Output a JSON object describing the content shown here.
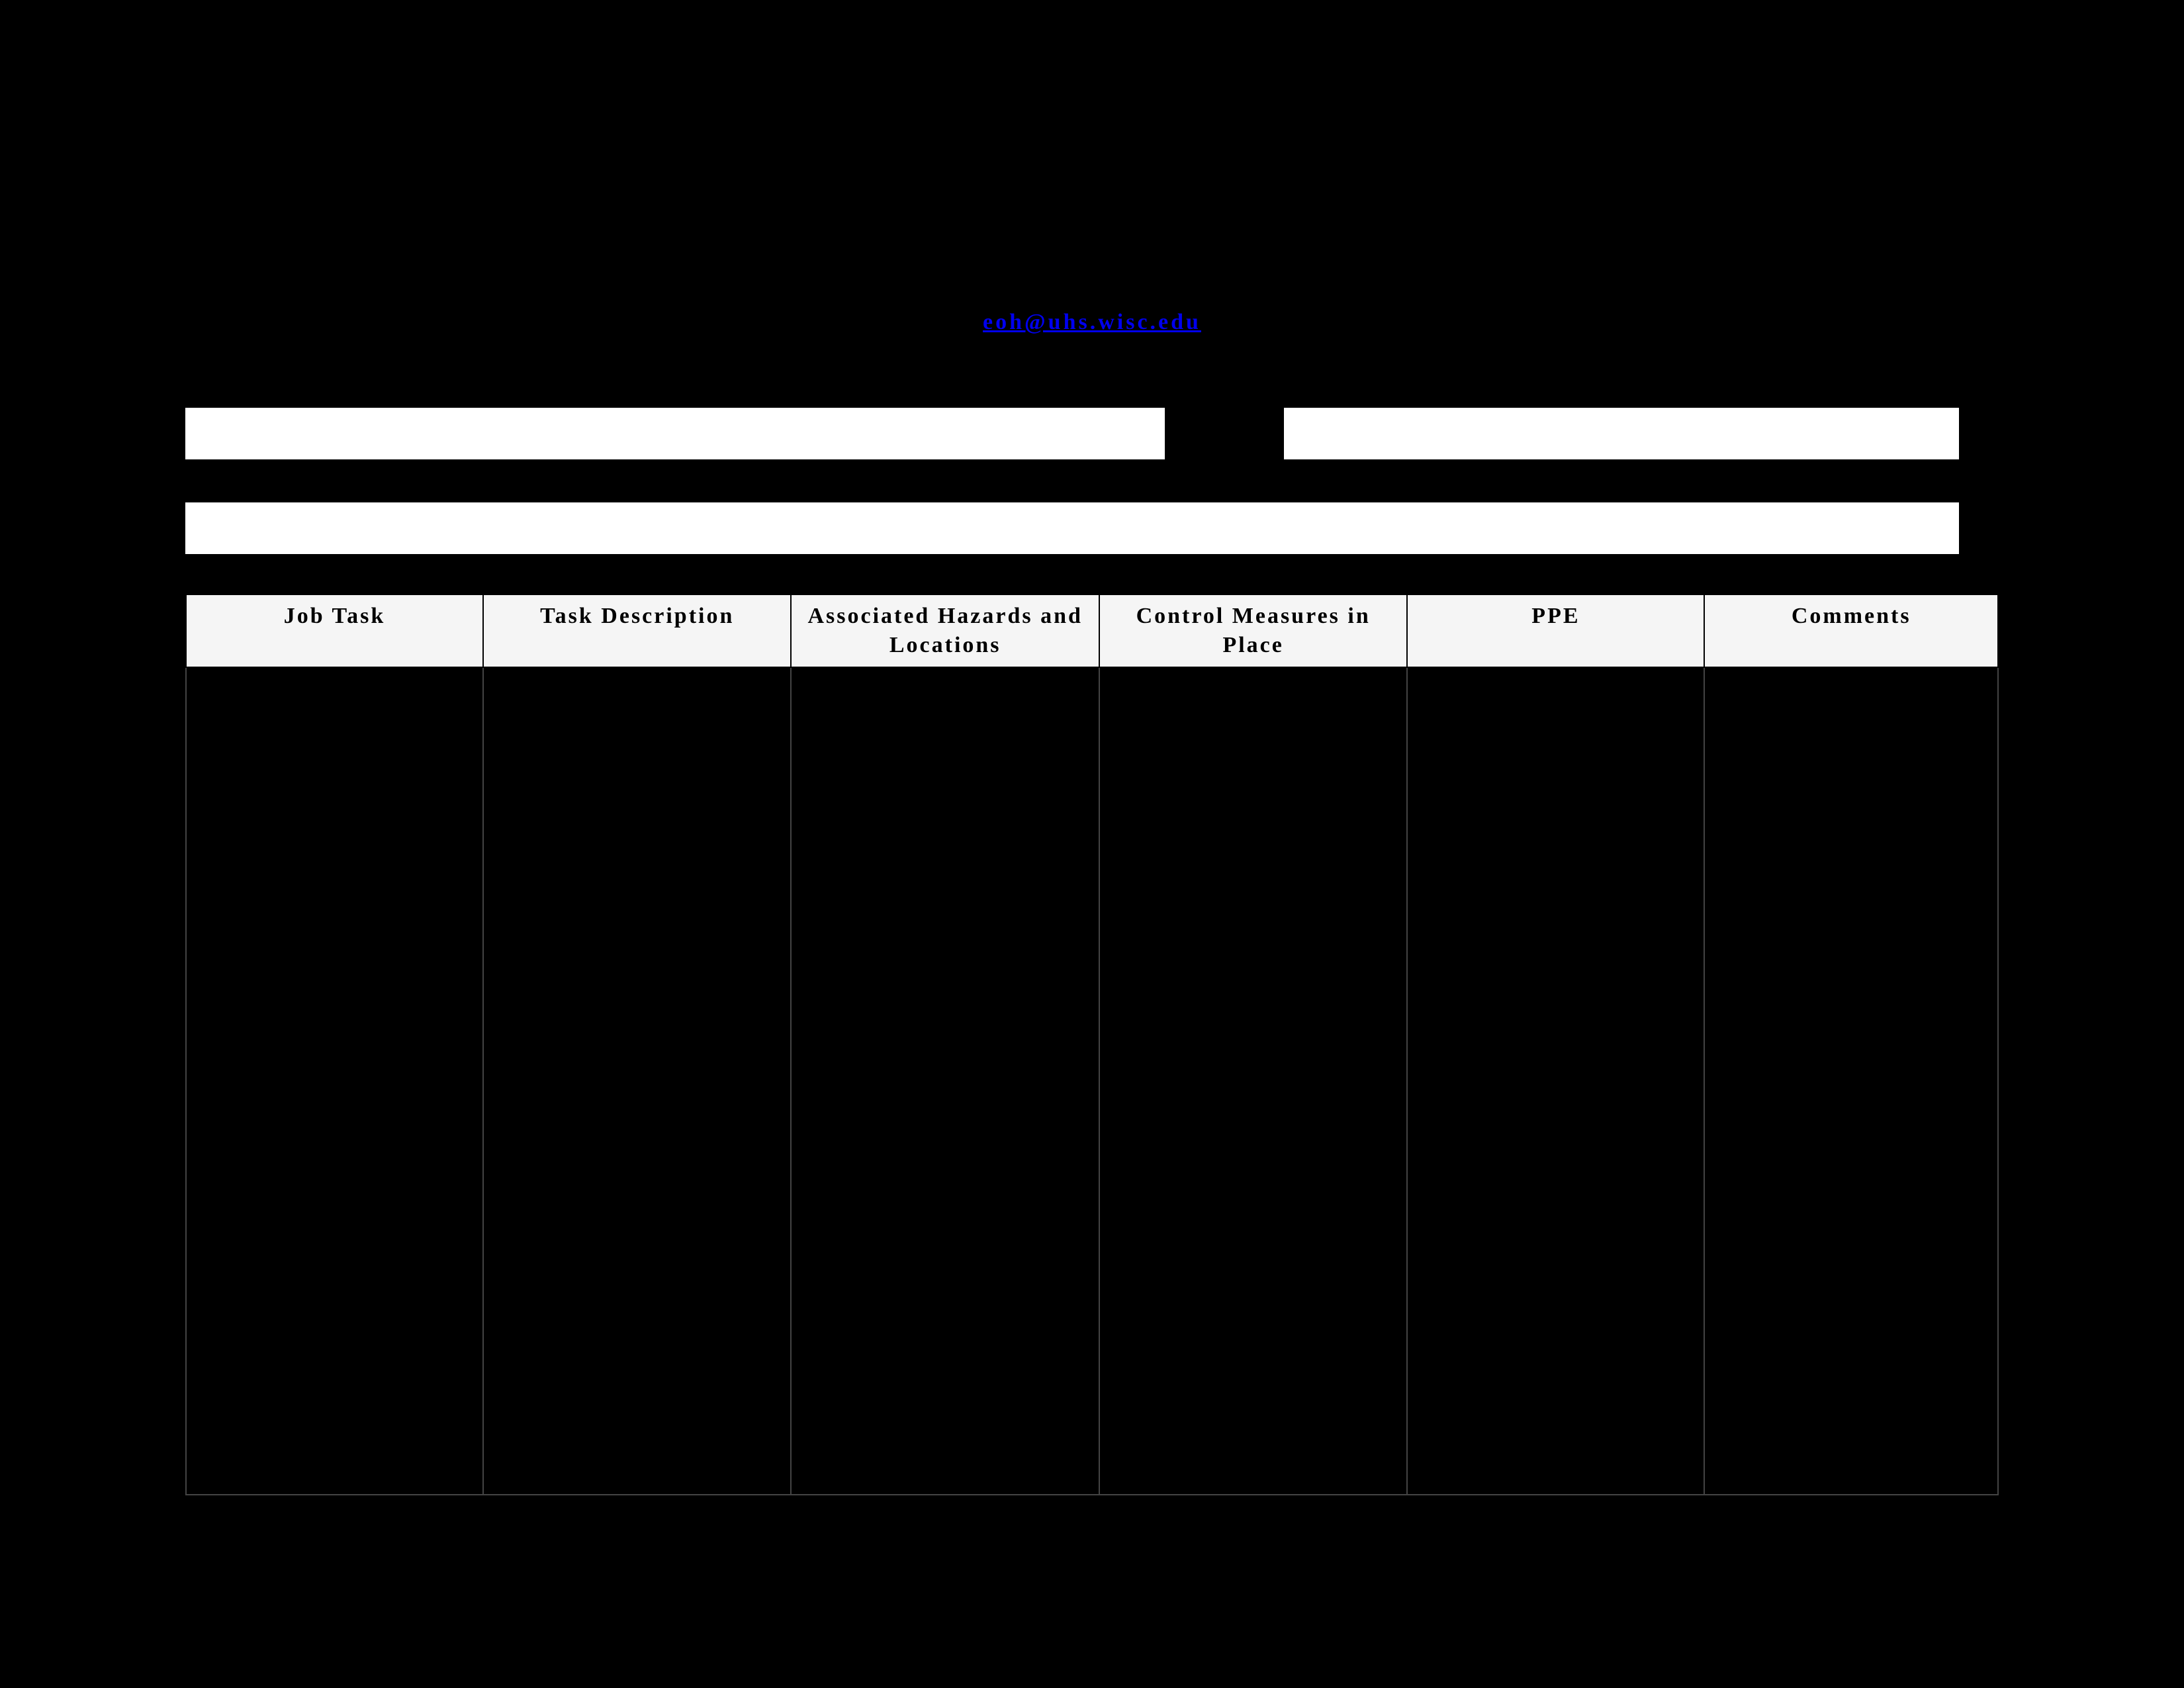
{
  "link": {
    "email_text": "eoh@uhs.wisc.edu",
    "email_href": "mailto:eoh@uhs.wisc.edu"
  },
  "fields": {
    "pi_value": "",
    "date_value": "",
    "location_value": ""
  },
  "table": {
    "headers": {
      "col1": "Job Task",
      "col2": "Task Description",
      "col3": "Associated Hazards and Locations",
      "col4": "Control Measures in Place",
      "col5": "PPE",
      "col6": "Comments"
    }
  },
  "style": {
    "page_bg": "#000000",
    "input_bg": "#ffffff",
    "header_bg": "#f5f5f5",
    "link_color": "#0000EE",
    "text_color": "#000000",
    "border_color": "#000000"
  }
}
